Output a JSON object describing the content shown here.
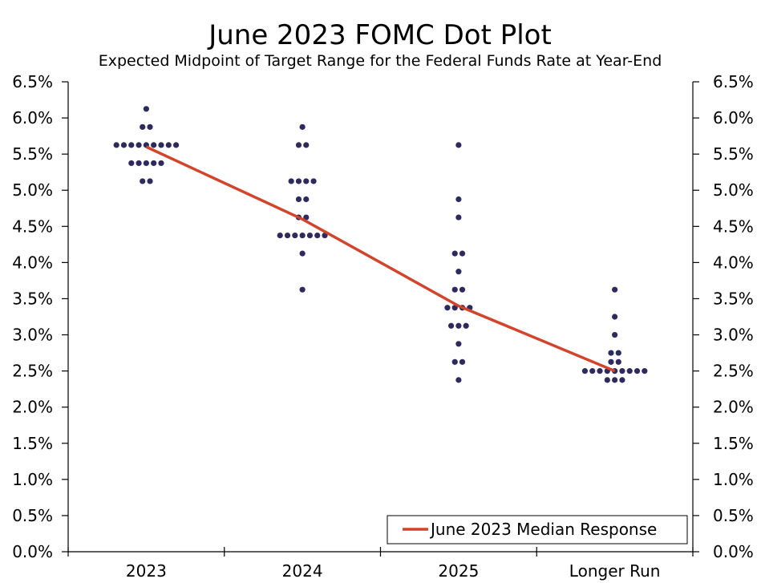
{
  "chart_data": {
    "type": "scatter",
    "title": "June 2023 FOMC Dot Plot",
    "subtitle": "Expected Midpoint of Target Range for the Federal Funds Rate at Year-End",
    "categories": [
      "2023",
      "2024",
      "2025",
      "Longer Run"
    ],
    "y_ticks": [
      "0.0%",
      "0.5%",
      "1.0%",
      "1.5%",
      "2.0%",
      "2.5%",
      "3.0%",
      "3.5%",
      "4.0%",
      "4.5%",
      "5.0%",
      "5.5%",
      "6.0%",
      "6.5%"
    ],
    "ylim": [
      0,
      6.5
    ],
    "grid": false,
    "legend_position": "bottom-right",
    "colors": {
      "dots": "#2e2a5e",
      "median_line": "#d0452b",
      "axis": "#000000"
    },
    "dots": [
      {
        "category": "2023",
        "counts": [
          [
            6.125,
            1
          ],
          [
            5.875,
            2
          ],
          [
            5.625,
            9
          ],
          [
            5.375,
            5
          ],
          [
            5.125,
            2
          ]
        ]
      },
      {
        "category": "2024",
        "counts": [
          [
            5.875,
            1
          ],
          [
            5.625,
            2
          ],
          [
            5.125,
            4
          ],
          [
            4.875,
            2
          ],
          [
            4.625,
            2
          ],
          [
            4.375,
            7
          ],
          [
            4.125,
            1
          ],
          [
            3.625,
            1
          ]
        ]
      },
      {
        "category": "2025",
        "counts": [
          [
            5.625,
            1
          ],
          [
            4.875,
            1
          ],
          [
            4.625,
            1
          ],
          [
            4.125,
            2
          ],
          [
            3.875,
            1
          ],
          [
            3.625,
            2
          ],
          [
            3.375,
            4
          ],
          [
            3.125,
            3
          ],
          [
            2.875,
            1
          ],
          [
            2.625,
            2
          ],
          [
            2.375,
            1
          ]
        ]
      },
      {
        "category": "Longer Run",
        "counts": [
          [
            3.625,
            1
          ],
          [
            3.25,
            1
          ],
          [
            3.0,
            1
          ],
          [
            2.75,
            2
          ],
          [
            2.625,
            2
          ],
          [
            2.5,
            9
          ],
          [
            2.375,
            3
          ]
        ]
      }
    ],
    "series": [
      {
        "name": "June 2023 Median Response",
        "type": "line",
        "values": [
          5.6,
          4.6,
          3.4,
          2.5
        ]
      }
    ]
  }
}
